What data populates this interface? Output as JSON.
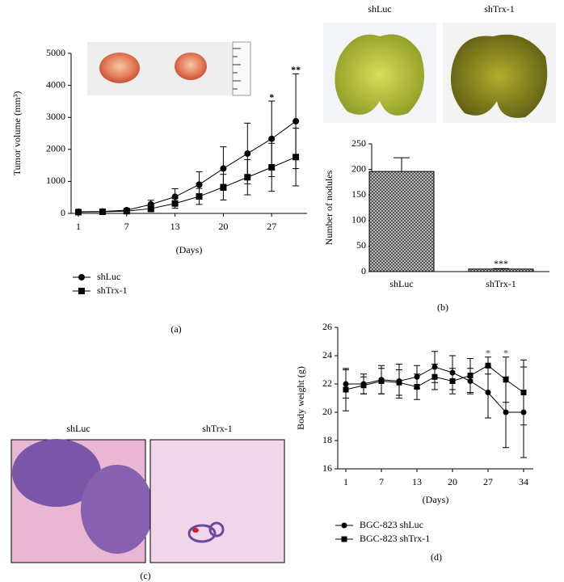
{
  "chart_data": [
    {
      "type": "line",
      "y_label": "Tumor volume (mm³)",
      "x_label": "(Days)",
      "categories": [
        "1",
        null,
        "7",
        null,
        "13",
        null,
        "20",
        null,
        "27",
        null
      ],
      "ylim": [
        0,
        5000
      ],
      "yticks": [
        0,
        1000,
        2000,
        3000,
        4000,
        5000
      ],
      "series": [
        {
          "name": "shLuc",
          "color": "#000000",
          "marker": "circle",
          "values": [
            50,
            60,
            100,
            280,
            520,
            900,
            1400,
            1870,
            2330,
            2880
          ],
          "errors": [
            0,
            0,
            30,
            130,
            250,
            400,
            680,
            950,
            1180,
            1480
          ]
        },
        {
          "name": "shTrx-1",
          "color": "#000000",
          "marker": "square",
          "values": [
            40,
            50,
            70,
            150,
            310,
            530,
            820,
            1130,
            1440,
            1760
          ],
          "errors": [
            0,
            0,
            20,
            100,
            150,
            250,
            400,
            550,
            750,
            900
          ]
        }
      ],
      "annotations": [
        "*",
        "**"
      ]
    },
    {
      "type": "bar",
      "y_label": "Number of nodules",
      "categories": [
        "shLuc",
        "shTrx-1"
      ],
      "values": [
        196,
        5
      ],
      "errors": [
        27,
        1
      ],
      "ylim": [
        0,
        250
      ],
      "yticks": [
        0,
        50,
        100,
        150,
        200,
        250
      ],
      "annotations": [
        "***"
      ]
    },
    {
      "type": "line",
      "y_label": "Body weight (g)",
      "x_label": "(Days)",
      "categories": [
        "1",
        null,
        "7",
        null,
        "13",
        null,
        "20",
        null,
        "27",
        null,
        "34"
      ],
      "ylim": [
        16,
        26
      ],
      "yticks": [
        16,
        18,
        20,
        22,
        24,
        26
      ],
      "series": [
        {
          "name": "BGC-823 shLuc",
          "color": "#000000",
          "marker": "circle",
          "values": [
            22.0,
            22.0,
            22.3,
            22.2,
            22.5,
            23.2,
            22.8,
            22.2,
            21.4,
            20.0,
            20.0
          ],
          "errors": [
            1.0,
            0.7,
            1.0,
            1.2,
            0.8,
            1.1,
            1.2,
            0.9,
            1.8,
            2.5,
            3.2
          ]
        },
        {
          "name": "BGC-823 shTrx-1",
          "color": "#000000",
          "marker": "square",
          "values": [
            21.6,
            21.9,
            22.2,
            22.1,
            21.8,
            22.5,
            22.2,
            22.6,
            23.3,
            22.3,
            21.4
          ],
          "errors": [
            1.5,
            0.6,
            0.9,
            0.9,
            0.9,
            0.9,
            0.9,
            1.2,
            0.6,
            1.6,
            2.3
          ]
        }
      ],
      "annotations": [
        "*",
        "*"
      ]
    }
  ],
  "panel_labels": [
    "(a)",
    "(b)",
    "(c)",
    "(d)"
  ],
  "lung_photo_labels": [
    "shLuc",
    "shTrx-1"
  ],
  "histology_labels": [
    "shLuc",
    "shTrx-1"
  ]
}
